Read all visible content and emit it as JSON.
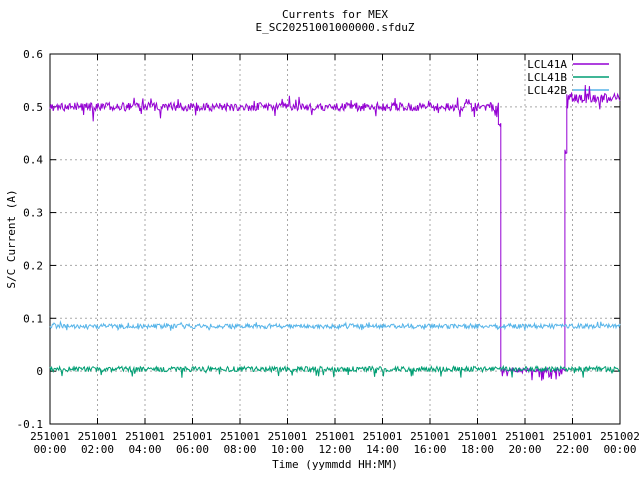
{
  "window": {
    "background": "#ffffff"
  },
  "chart_data": {
    "type": "line",
    "title": "Currents for MEX",
    "subtitle": "E_SC20251001000000.sfduZ",
    "xlabel": "Time (yymmdd HH:MM)",
    "ylabel": "S/C Current (A)",
    "ylim": [
      -0.1,
      0.6
    ],
    "x_range_hours": [
      0,
      24
    ],
    "grid": true,
    "legend_position": "top-right-inside",
    "colors": {
      "axis": "#000000",
      "grid": "#a8a8a8",
      "background": "#ffffff",
      "lcl41a": "#9400d3",
      "lcl41b": "#009e73",
      "lcl42b": "#56b4e9"
    },
    "y_ticks": [
      {
        "v": -0.1,
        "label": "-0.1"
      },
      {
        "v": 0,
        "label": "0"
      },
      {
        "v": 0.1,
        "label": "0.1"
      },
      {
        "v": 0.2,
        "label": "0.2"
      },
      {
        "v": 0.3,
        "label": "0.3"
      },
      {
        "v": 0.4,
        "label": "0.4"
      },
      {
        "v": 0.5,
        "label": "0.5"
      },
      {
        "v": 0.6,
        "label": "0.6"
      }
    ],
    "x_ticks": [
      {
        "hour": 0,
        "date": "251001",
        "time": "00:00"
      },
      {
        "hour": 2,
        "date": "251001",
        "time": "02:00"
      },
      {
        "hour": 4,
        "date": "251001",
        "time": "04:00"
      },
      {
        "hour": 6,
        "date": "251001",
        "time": "06:00"
      },
      {
        "hour": 8,
        "date": "251001",
        "time": "08:00"
      },
      {
        "hour": 10,
        "date": "251001",
        "time": "10:00"
      },
      {
        "hour": 12,
        "date": "251001",
        "time": "12:00"
      },
      {
        "hour": 14,
        "date": "251001",
        "time": "14:00"
      },
      {
        "hour": 16,
        "date": "251001",
        "time": "16:00"
      },
      {
        "hour": 18,
        "date": "251001",
        "time": "18:00"
      },
      {
        "hour": 20,
        "date": "251001",
        "time": "20:00"
      },
      {
        "hour": 22,
        "date": "251001",
        "time": "22:00"
      },
      {
        "hour": 24,
        "date": "251002",
        "time": "00:00"
      }
    ],
    "series": [
      {
        "name": "LCL41A",
        "color": "#9400d3",
        "segments": [
          {
            "from": 0,
            "to": 18.88,
            "level": 0.5,
            "noise": 0.008,
            "spike": 0.028,
            "spike_prob": 0.1,
            "bias": 0
          },
          {
            "from": 18.88,
            "to": 18.98,
            "level": 0.468,
            "noise": 0.004,
            "spike": 0,
            "spike_prob": 0,
            "bias": 0
          },
          {
            "from": 18.98,
            "to": 21.68,
            "level": 0.002,
            "noise": 0.004,
            "spike": 0.02,
            "spike_prob": 0.14,
            "bias": -1
          },
          {
            "from": 21.68,
            "to": 21.76,
            "level": 0.415,
            "noise": 0.004,
            "spike": 0,
            "spike_prob": 0,
            "bias": 0
          },
          {
            "from": 21.76,
            "to": 24,
            "level": 0.516,
            "noise": 0.009,
            "spike": 0.03,
            "spike_prob": 0.12,
            "bias": 0
          }
        ]
      },
      {
        "name": "LCL41B",
        "color": "#009e73",
        "segments": [
          {
            "from": 0,
            "to": 24,
            "level": 0.004,
            "noise": 0.005,
            "spike": 0.017,
            "spike_prob": 0.06,
            "bias": -1
          }
        ]
      },
      {
        "name": "LCL42B",
        "color": "#56b4e9",
        "segments": [
          {
            "from": 0,
            "to": 24,
            "level": 0.085,
            "noise": 0.0045,
            "spike": 0.009,
            "spike_prob": 0.08,
            "bias": 0
          }
        ]
      }
    ]
  }
}
